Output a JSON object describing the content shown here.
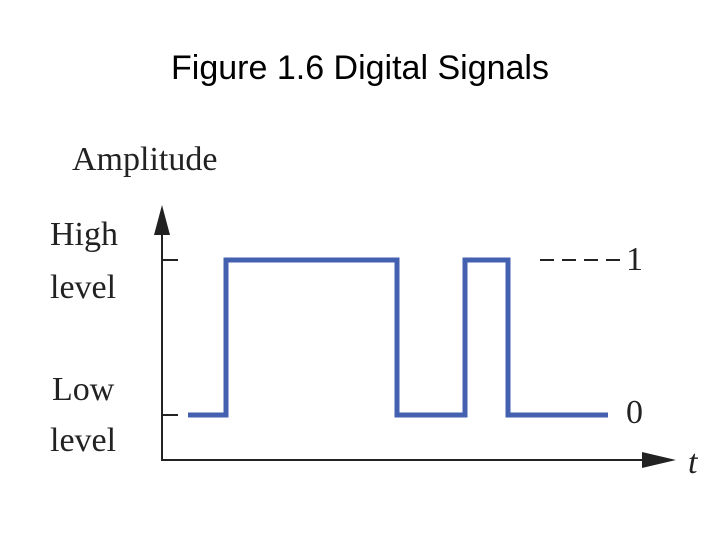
{
  "title": "Figure 1.6 Digital Signals",
  "y_axis": {
    "label": "Amplitude"
  },
  "x_axis": {
    "label": "t"
  },
  "levels": [
    {
      "label_lines": [
        "High",
        "level"
      ],
      "value_label": "1"
    },
    {
      "label_lines": [
        "Low",
        "level"
      ],
      "value_label": "0"
    }
  ]
}
